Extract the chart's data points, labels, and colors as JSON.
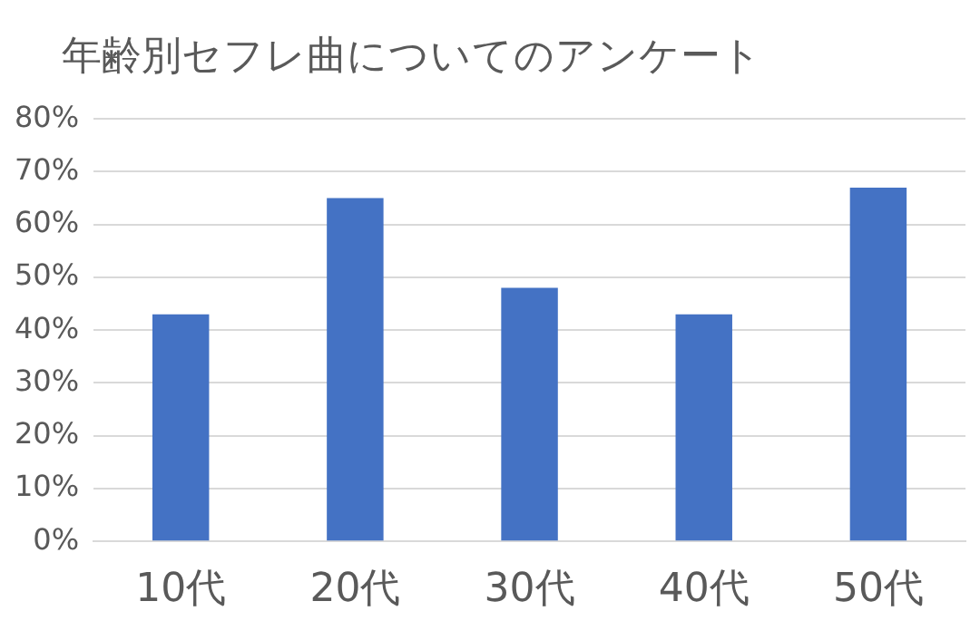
{
  "chart_data": {
    "type": "bar",
    "title": "年齢別セフレ曲についてのアンケート",
    "categories": [
      "10代",
      "20代",
      "30代",
      "40代",
      "50代"
    ],
    "values": [
      43,
      65,
      48,
      43,
      67
    ],
    "color": "#4472c4",
    "ylim": [
      0,
      80
    ],
    "yticks": [
      {
        "value": 0,
        "label": "0%"
      },
      {
        "value": 10,
        "label": "10%"
      },
      {
        "value": 20,
        "label": "20%"
      },
      {
        "value": 30,
        "label": "30%"
      },
      {
        "value": 40,
        "label": "40%"
      },
      {
        "value": 50,
        "label": "50%"
      },
      {
        "value": 60,
        "label": "60%"
      },
      {
        "value": 70,
        "label": "70%"
      },
      {
        "value": 80,
        "label": "80%"
      }
    ],
    "grid": "y",
    "legend": false
  }
}
